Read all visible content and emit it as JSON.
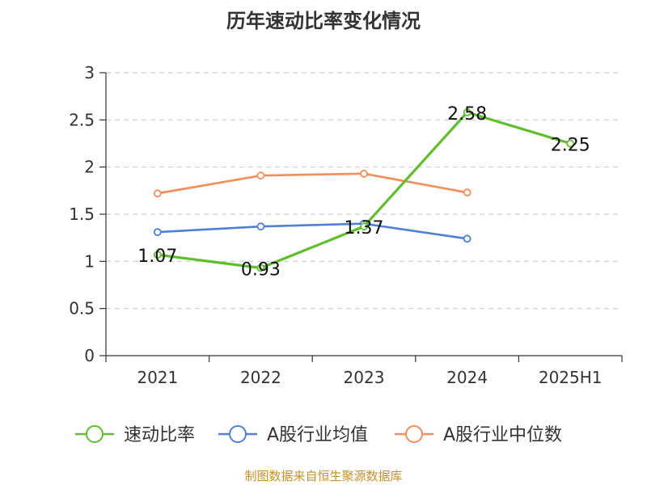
{
  "title": "历年速动比率变化情况",
  "source": "制图数据来自恒生聚源数据库",
  "chart_data": {
    "type": "line",
    "categories": [
      "2021",
      "2022",
      "2023",
      "2024",
      "2025H1"
    ],
    "ylim": [
      0,
      3
    ],
    "yticks": [
      "0",
      "0.5",
      "1",
      "1.5",
      "2",
      "2.5",
      "3"
    ],
    "grid": "horizontal-dashed",
    "legend_position": "bottom",
    "series": [
      {
        "name": "速动比率",
        "color": "#5fbf2a",
        "values": [
          1.07,
          0.93,
          1.37,
          2.58,
          2.25
        ],
        "labels": [
          "1.07",
          "0.93",
          "1.37",
          "2.58",
          "2.25"
        ]
      },
      {
        "name": "A股行业均值",
        "color": "#4f7fd9",
        "values": [
          1.31,
          1.37,
          1.4,
          1.24,
          null
        ]
      },
      {
        "name": "A股行业中位数",
        "color": "#f58d5b",
        "values": [
          1.72,
          1.91,
          1.93,
          1.73,
          null
        ]
      }
    ]
  }
}
